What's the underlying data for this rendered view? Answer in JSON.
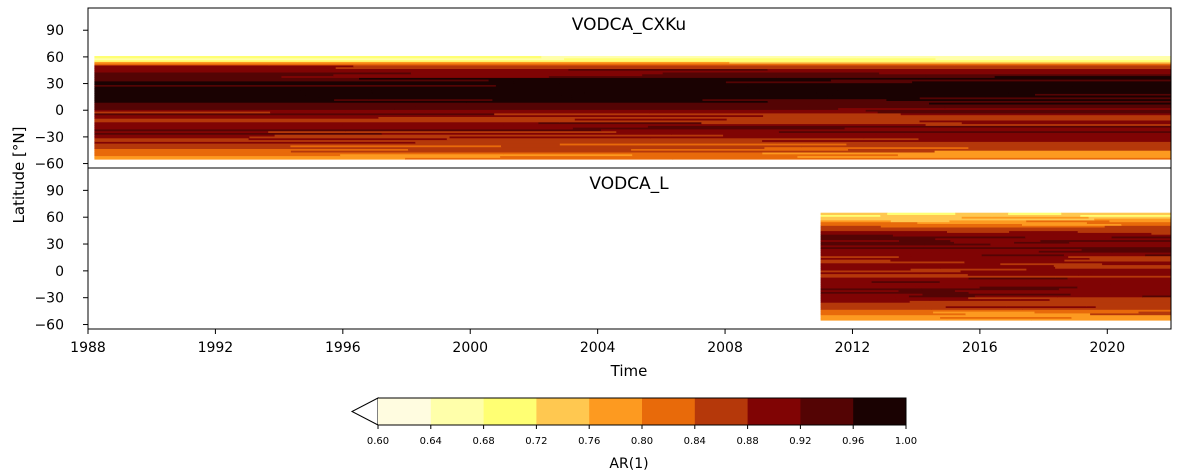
{
  "figure": {
    "shared_ylabel": "Latitude [°N]",
    "shared_xlabel": "Time"
  },
  "chart_data": [
    {
      "type": "heatmap",
      "title": "VODCA_CXKu",
      "xlabel": "Time",
      "ylabel": "Latitude [°N]",
      "xlim": [
        1988,
        2022
      ],
      "ylim": [
        -65,
        115
      ],
      "yticks": [
        -60,
        -30,
        0,
        30,
        60,
        90
      ],
      "data_extent": {
        "x": [
          1988.2,
          2022
        ],
        "y": [
          -55,
          60
        ]
      },
      "profile": [
        {
          "lat": 58,
          "value": 0.66
        },
        {
          "lat": 50,
          "value": 0.87
        },
        {
          "lat": 40,
          "value": 0.93
        },
        {
          "lat": 30,
          "value": 0.98
        },
        {
          "lat": 20,
          "value": 0.99
        },
        {
          "lat": 10,
          "value": 0.96
        },
        {
          "lat": 0,
          "value": 0.9
        },
        {
          "lat": -10,
          "value": 0.88
        },
        {
          "lat": -20,
          "value": 0.92
        },
        {
          "lat": -30,
          "value": 0.88
        },
        {
          "lat": -40,
          "value": 0.86
        },
        {
          "lat": -50,
          "value": 0.8
        }
      ]
    },
    {
      "type": "heatmap",
      "title": "VODCA_L",
      "xlabel": "Time",
      "ylabel": "Latitude [°N]",
      "xlim": [
        1988,
        2022
      ],
      "ylim": [
        -65,
        115
      ],
      "yticks": [
        -60,
        -30,
        0,
        30,
        60,
        90
      ],
      "data_extent": {
        "x": [
          2011,
          2022
        ],
        "y": [
          -55,
          65
        ]
      },
      "profile": [
        {
          "lat": 62,
          "value": 0.74
        },
        {
          "lat": 55,
          "value": 0.78
        },
        {
          "lat": 45,
          "value": 0.88
        },
        {
          "lat": 35,
          "value": 0.92
        },
        {
          "lat": 20,
          "value": 0.91
        },
        {
          "lat": 10,
          "value": 0.89
        },
        {
          "lat": 0,
          "value": 0.88
        },
        {
          "lat": -10,
          "value": 0.9
        },
        {
          "lat": -20,
          "value": 0.92
        },
        {
          "lat": -30,
          "value": 0.89
        },
        {
          "lat": -40,
          "value": 0.87
        },
        {
          "lat": -50,
          "value": 0.8
        }
      ]
    }
  ],
  "xticks": [
    "1988",
    "1992",
    "1996",
    "2000",
    "2004",
    "2008",
    "2012",
    "2016",
    "2020"
  ],
  "yticklabels": [
    "90",
    "60",
    "30",
    "0",
    "−30",
    "−60"
  ],
  "colorbar": {
    "label": "AR(1)",
    "extend": "min",
    "ticks": [
      "0.60",
      "0.64",
      "0.68",
      "0.72",
      "0.76",
      "0.80",
      "0.84",
      "0.88",
      "0.92",
      "0.96",
      "1.00"
    ],
    "colors": [
      "#fffce0",
      "#ffffaa",
      "#ffff73",
      "#ffc850",
      "#fd9a20",
      "#e86a0a",
      "#b5380a",
      "#800404",
      "#540404",
      "#1a0202"
    ]
  }
}
